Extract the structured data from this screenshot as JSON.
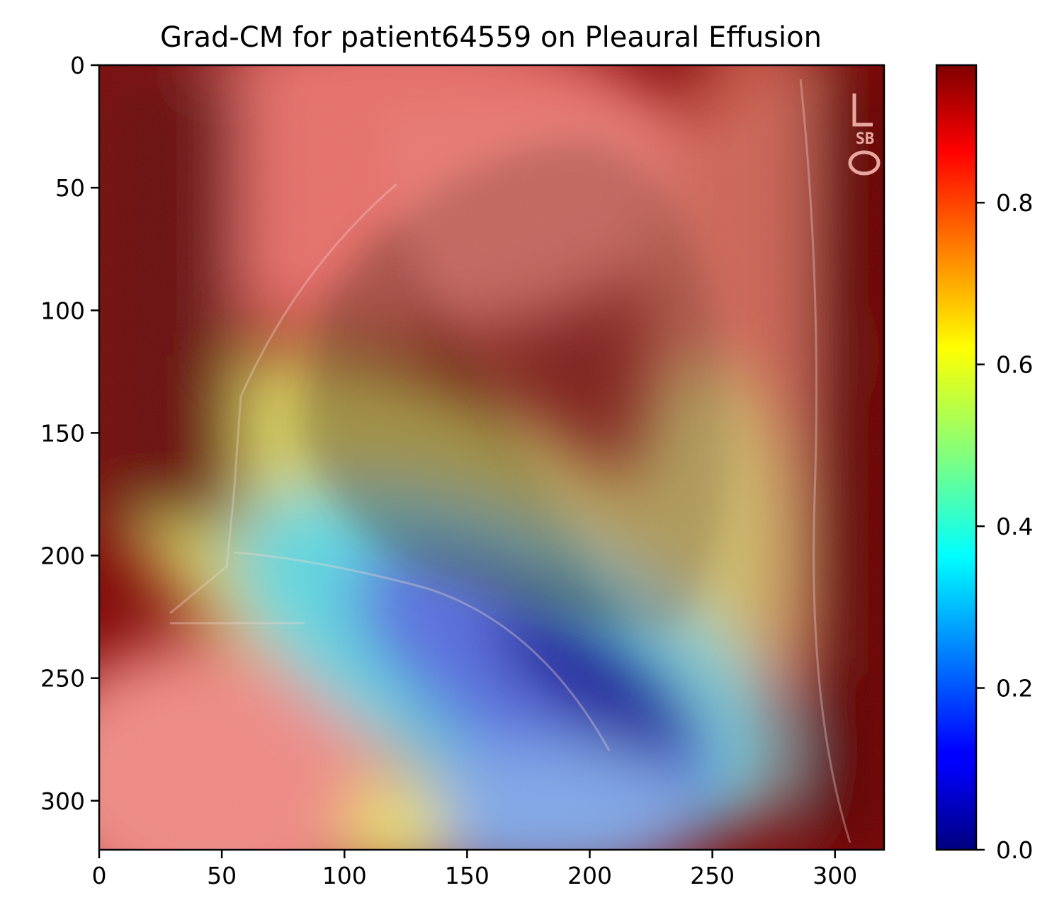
{
  "chart_data": {
    "type": "heatmap",
    "title": "Grad-CM for patient64559 on Pleaural Effusion",
    "xlabel": "",
    "ylabel": "",
    "xlim": [
      0,
      320
    ],
    "ylim": [
      320,
      0
    ],
    "x_ticks": [
      0,
      50,
      100,
      150,
      200,
      250,
      300
    ],
    "y_ticks": [
      0,
      50,
      100,
      150,
      200,
      250,
      300
    ],
    "x_tick_labels": [
      "0",
      "50",
      "100",
      "150",
      "200",
      "250",
      "300"
    ],
    "y_tick_labels": [
      "0",
      "50",
      "100",
      "150",
      "200",
      "250",
      "300"
    ],
    "grid": false,
    "colormap": "jet",
    "colorbar": {
      "range": [
        0,
        0.97
      ],
      "ticks": [
        0.0,
        0.2,
        0.4,
        0.6,
        0.8
      ],
      "tick_labels": [
        "0.0",
        "0.2",
        "0.4",
        "0.6",
        "0.8"
      ]
    },
    "background": "lateral chest x-ray with Grad-CAM heatmap overlay",
    "activation_regions": [
      {
        "center": [
          195,
          262
        ],
        "level": 0.0,
        "description": "minimum activation, lower thorax near diaphragm"
      },
      {
        "center": [
          100,
          285
        ],
        "level": 0.4,
        "description": "mid activation band"
      },
      {
        "center": [
          90,
          120
        ],
        "level": 0.97,
        "description": "maximum activation, upper/left region"
      },
      {
        "center": [
          230,
          200
        ],
        "level": 0.6,
        "description": "transition band"
      }
    ],
    "image_annotations": [
      "L",
      "SB"
    ]
  },
  "colors": {
    "jet_low": "#00007f",
    "jet_mid": "#7fff7f",
    "jet_high": "#7f0000"
  }
}
